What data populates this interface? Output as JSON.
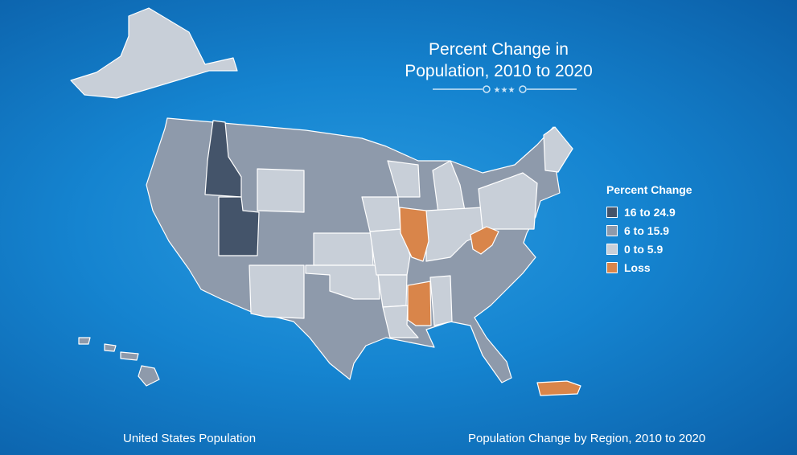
{
  "title": [
    "Percent Change in",
    "Population, 2010 to 2020"
  ],
  "legend": {
    "title": "Percent Change",
    "items": [
      {
        "label": "16 to 24.9",
        "color": "#44546a"
      },
      {
        "label": "6 to 15.9",
        "color": "#8e9aab"
      },
      {
        "label": "0 to 5.9",
        "color": "#c8cfd8"
      },
      {
        "label": "Loss",
        "color": "#d9854a"
      }
    ]
  },
  "footer": {
    "left": "United States Population",
    "right": "Population Change by Region, 2010 to 2020"
  }
}
